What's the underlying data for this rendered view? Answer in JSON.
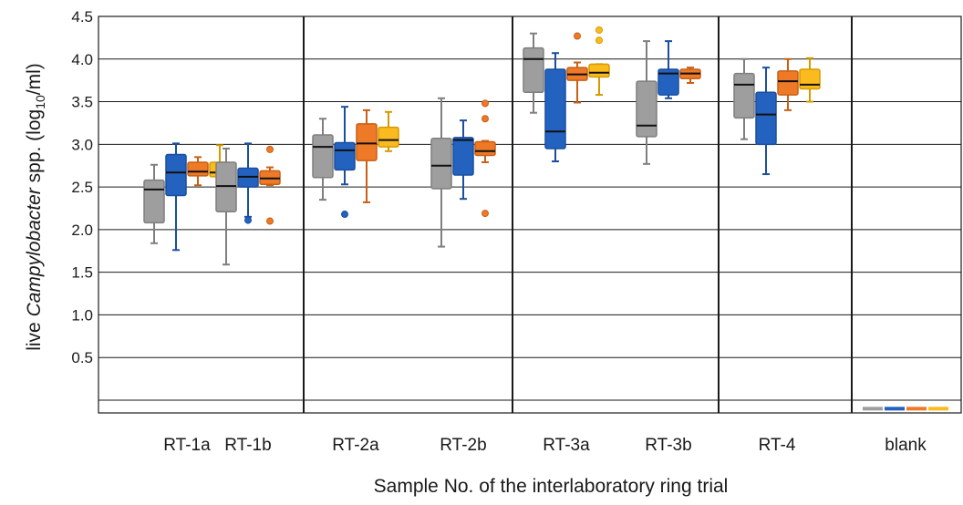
{
  "chart_data": {
    "type": "box",
    "title": "",
    "xlabel": "Sample No. of the interlaboratory ring trial",
    "ylabel": {
      "prefix": "live ",
      "italic": "Campylobacter",
      "middle": " spp. (log",
      "subscript": "10",
      "suffix": "/ml)"
    },
    "ylim": [
      -0.15,
      4.5
    ],
    "yticks": [
      "0.5",
      "1.0",
      "1.5",
      "2.0",
      "2.5",
      "3.0",
      "3.5",
      "4.0",
      "4.5"
    ],
    "grid": true,
    "colors": [
      "#9e9e9e",
      "#2462c0",
      "#ee7a28",
      "#fbbb1e"
    ],
    "edge_colors": [
      "#7f7f7f",
      "#1a4f9e",
      "#c85f15",
      "#d69a00"
    ],
    "categories": [
      "RT-1a",
      "RT-1b",
      "RT-2a",
      "RT-2b",
      "RT-3a",
      "RT-3b",
      "RT-4",
      "blank"
    ],
    "groups": [
      {
        "category": "RT-1a",
        "boxes": [
          {
            "min": 1.84,
            "q1": 2.08,
            "median": 2.47,
            "q3": 2.58,
            "max": 2.76,
            "outliers": []
          },
          {
            "min": 1.76,
            "q1": 2.4,
            "median": 2.67,
            "q3": 2.88,
            "max": 3.01,
            "outliers": []
          },
          {
            "min": 2.52,
            "q1": 2.63,
            "median": 2.68,
            "q3": 2.79,
            "max": 2.85,
            "outliers": []
          },
          {
            "min": 2.55,
            "q1": 2.62,
            "median": 2.67,
            "q3": 2.79,
            "max": 2.99,
            "outliers": [
              2.41
            ]
          }
        ]
      },
      {
        "category": "RT-1b",
        "boxes": [
          {
            "min": 1.59,
            "q1": 2.21,
            "median": 2.51,
            "q3": 2.79,
            "max": 2.95,
            "outliers": []
          },
          {
            "min": 2.15,
            "q1": 2.5,
            "median": 2.62,
            "q3": 2.72,
            "max": 3.01,
            "outliers": [
              2.11
            ]
          },
          {
            "min": 2.52,
            "q1": 2.53,
            "median": 2.6,
            "q3": 2.69,
            "max": 2.73,
            "outliers": [
              2.94,
              2.1
            ]
          }
        ]
      },
      {
        "category": "RT-2a",
        "boxes": [
          {
            "min": 2.35,
            "q1": 2.61,
            "median": 2.97,
            "q3": 3.11,
            "max": 3.3,
            "outliers": []
          },
          {
            "min": 2.53,
            "q1": 2.7,
            "median": 2.93,
            "q3": 3.02,
            "max": 3.44,
            "outliers": [
              2.18
            ]
          },
          {
            "min": 2.32,
            "q1": 2.81,
            "median": 3.01,
            "q3": 3.24,
            "max": 3.4,
            "outliers": []
          },
          {
            "min": 2.92,
            "q1": 2.97,
            "median": 3.05,
            "q3": 3.2,
            "max": 3.38,
            "outliers": []
          }
        ]
      },
      {
        "category": "RT-2b",
        "boxes": [
          {
            "min": 1.8,
            "q1": 2.48,
            "median": 2.75,
            "q3": 3.07,
            "max": 3.54,
            "outliers": []
          },
          {
            "min": 2.36,
            "q1": 2.64,
            "median": 3.05,
            "q3": 3.08,
            "max": 3.28,
            "outliers": []
          },
          {
            "min": 2.79,
            "q1": 2.87,
            "median": 2.92,
            "q3": 3.03,
            "max": 3.04,
            "outliers": [
              3.48,
              3.3,
              2.19
            ]
          }
        ]
      },
      {
        "category": "RT-3a",
        "boxes": [
          {
            "min": 3.37,
            "q1": 3.61,
            "median": 4.0,
            "q3": 4.13,
            "max": 4.3,
            "outliers": []
          },
          {
            "min": 2.8,
            "q1": 2.95,
            "median": 3.15,
            "q3": 3.88,
            "max": 4.07,
            "outliers": []
          },
          {
            "min": 3.49,
            "q1": 3.75,
            "median": 3.82,
            "q3": 3.9,
            "max": 3.96,
            "outliers": [
              4.27
            ]
          },
          {
            "min": 3.58,
            "q1": 3.79,
            "median": 3.84,
            "q3": 3.94,
            "max": 3.94,
            "outliers": [
              4.34,
              4.22
            ]
          }
        ]
      },
      {
        "category": "RT-3b",
        "boxes": [
          {
            "min": 2.77,
            "q1": 3.09,
            "median": 3.22,
            "q3": 3.74,
            "max": 4.21,
            "outliers": []
          },
          {
            "min": 3.54,
            "q1": 3.58,
            "median": 3.83,
            "q3": 3.88,
            "max": 4.21,
            "outliers": []
          },
          {
            "min": 3.72,
            "q1": 3.77,
            "median": 3.83,
            "q3": 3.88,
            "max": 3.9,
            "outliers": []
          }
        ]
      },
      {
        "category": "RT-4",
        "boxes": [
          {
            "min": 3.06,
            "q1": 3.31,
            "median": 3.7,
            "q3": 3.83,
            "max": 4.0,
            "outliers": []
          },
          {
            "min": 2.65,
            "q1": 3.0,
            "median": 3.35,
            "q3": 3.61,
            "max": 3.9,
            "outliers": []
          },
          {
            "min": 3.4,
            "q1": 3.58,
            "median": 3.74,
            "q3": 3.86,
            "max": 4.0,
            "outliers": []
          },
          {
            "min": 3.5,
            "q1": 3.65,
            "median": 3.7,
            "q3": 3.88,
            "max": 4.01,
            "outliers": []
          }
        ]
      },
      {
        "category": "blank",
        "boxes": [
          {
            "min": -0.1,
            "q1": -0.1,
            "median": -0.1,
            "q3": -0.1,
            "max": -0.1,
            "outliers": []
          },
          {
            "min": -0.1,
            "q1": -0.1,
            "median": -0.1,
            "q3": -0.1,
            "max": -0.1,
            "outliers": []
          },
          {
            "min": -0.1,
            "q1": -0.1,
            "median": -0.1,
            "q3": -0.1,
            "max": -0.1,
            "outliers": []
          },
          {
            "min": -0.1,
            "q1": -0.1,
            "median": -0.1,
            "q3": -0.1,
            "max": -0.1,
            "outliers": []
          }
        ]
      }
    ]
  }
}
